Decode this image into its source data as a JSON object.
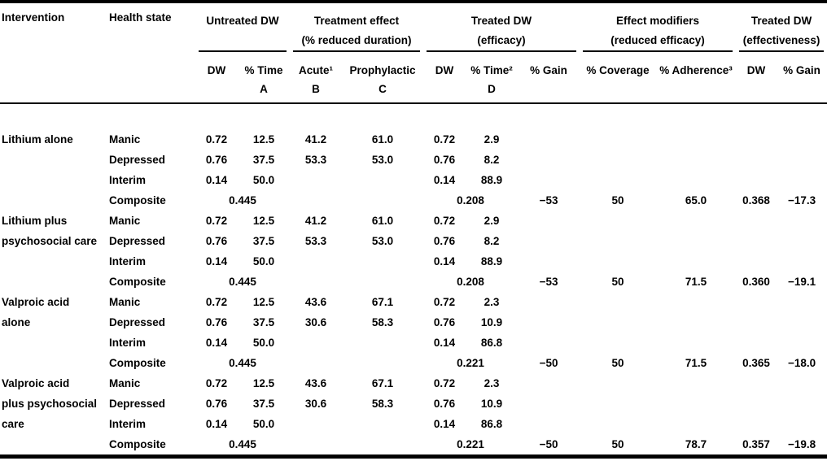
{
  "colors": {
    "text": "#000000",
    "background": "#ffffff",
    "rule": "#000000"
  },
  "table": {
    "header": {
      "intervention": "Intervention",
      "health_state": "Health state",
      "groups": [
        {
          "line1": "Untreated DW",
          "line2": "",
          "subcols": [
            {
              "top": "DW",
              "letter": ""
            },
            {
              "top": "% Time",
              "letter": "A"
            }
          ]
        },
        {
          "line1": "Treatment effect",
          "line2": "(% reduced duration)",
          "subcols": [
            {
              "top": "Acute¹",
              "letter": "B"
            },
            {
              "top": "Prophylactic",
              "letter": "C"
            }
          ]
        },
        {
          "line1": "Treated DW",
          "line2": "(efficacy)",
          "subcols": [
            {
              "top": "DW",
              "letter": ""
            },
            {
              "top": "% Time²",
              "letter": "D"
            },
            {
              "top": "% Gain",
              "letter": ""
            }
          ]
        },
        {
          "line1": "Effect modifiers",
          "line2": "(reduced efficacy)",
          "subcols": [
            {
              "top": "% Coverage",
              "letter": ""
            },
            {
              "top": "% Adherence³",
              "letter": ""
            }
          ]
        },
        {
          "line1": "Treated DW",
          "line2": "(effectiveness)",
          "subcols": [
            {
              "top": "DW",
              "letter": ""
            },
            {
              "top": "% Gain",
              "letter": ""
            }
          ]
        }
      ]
    },
    "column_keys": [
      "dw_untreated",
      "pct_time_a",
      "acute_b",
      "prophylactic_c",
      "dw_efficacy",
      "pct_time_d",
      "pct_gain_efficacy",
      "pct_coverage",
      "pct_adherence",
      "dw_effectiveness",
      "pct_gain_effectiveness"
    ],
    "sections": [
      {
        "intervention_lines": [
          "Lithium alone",
          "",
          "",
          ""
        ],
        "rows": [
          {
            "health_state": "Manic",
            "cells": [
              "0.72",
              "12.5",
              "41.2",
              "61.0",
              "0.72",
              "2.9",
              "",
              "",
              "",
              "",
              ""
            ]
          },
          {
            "health_state": "Depressed",
            "cells": [
              "0.76",
              "37.5",
              "53.3",
              "53.0",
              "0.76",
              "8.2",
              "",
              "",
              "",
              "",
              ""
            ]
          },
          {
            "health_state": "Interim",
            "cells": [
              "0.14",
              "50.0",
              "",
              "",
              "0.14",
              "88.9",
              "",
              "",
              "",
              "",
              ""
            ]
          },
          {
            "health_state": "Composite",
            "composite": true,
            "untreated_composite": "0.445",
            "efficacy_composite": "0.208",
            "gain_efficacy": "−53",
            "coverage": "50",
            "adherence": "65.0",
            "dw_effectiveness": "0.368",
            "gain_effectiveness": "−17.3"
          }
        ]
      },
      {
        "intervention_lines": [
          "Lithium plus",
          "psychosocial care",
          "",
          ""
        ],
        "rows": [
          {
            "health_state": "Manic",
            "cells": [
              "0.72",
              "12.5",
              "41.2",
              "61.0",
              "0.72",
              "2.9",
              "",
              "",
              "",
              "",
              ""
            ]
          },
          {
            "health_state": "Depressed",
            "cells": [
              "0.76",
              "37.5",
              "53.3",
              "53.0",
              "0.76",
              "8.2",
              "",
              "",
              "",
              "",
              ""
            ]
          },
          {
            "health_state": "Interim",
            "cells": [
              "0.14",
              "50.0",
              "",
              "",
              "0.14",
              "88.9",
              "",
              "",
              "",
              "",
              ""
            ]
          },
          {
            "health_state": "Composite",
            "composite": true,
            "untreated_composite": "0.445",
            "efficacy_composite": "0.208",
            "gain_efficacy": "−53",
            "coverage": "50",
            "adherence": "71.5",
            "dw_effectiveness": "0.360",
            "gain_effectiveness": "−19.1"
          }
        ]
      },
      {
        "intervention_lines": [
          "Valproic acid",
          "alone",
          "",
          ""
        ],
        "rows": [
          {
            "health_state": "Manic",
            "cells": [
              "0.72",
              "12.5",
              "43.6",
              "67.1",
              "0.72",
              "2.3",
              "",
              "",
              "",
              "",
              ""
            ]
          },
          {
            "health_state": "Depressed",
            "cells": [
              "0.76",
              "37.5",
              "30.6",
              "58.3",
              "0.76",
              "10.9",
              "",
              "",
              "",
              "",
              ""
            ]
          },
          {
            "health_state": "Interim",
            "cells": [
              "0.14",
              "50.0",
              "",
              "",
              "0.14",
              "86.8",
              "",
              "",
              "",
              "",
              ""
            ]
          },
          {
            "health_state": "Composite",
            "composite": true,
            "untreated_composite": "0.445",
            "efficacy_composite": "0.221",
            "gain_efficacy": "−50",
            "coverage": "50",
            "adherence": "71.5",
            "dw_effectiveness": "0.365",
            "gain_effectiveness": "−18.0"
          }
        ]
      },
      {
        "intervention_lines": [
          "Valproic acid",
          "plus psychosocial",
          "care",
          ""
        ],
        "rows": [
          {
            "health_state": "Manic",
            "cells": [
              "0.72",
              "12.5",
              "43.6",
              "67.1",
              "0.72",
              "2.3",
              "",
              "",
              "",
              "",
              ""
            ]
          },
          {
            "health_state": "Depressed",
            "cells": [
              "0.76",
              "37.5",
              "30.6",
              "58.3",
              "0.76",
              "10.9",
              "",
              "",
              "",
              "",
              ""
            ]
          },
          {
            "health_state": "Interim",
            "cells": [
              "0.14",
              "50.0",
              "",
              "",
              "0.14",
              "86.8",
              "",
              "",
              "",
              "",
              ""
            ]
          },
          {
            "health_state": "Composite",
            "composite": true,
            "untreated_composite": "0.445",
            "efficacy_composite": "0.221",
            "gain_efficacy": "−50",
            "coverage": "50",
            "adherence": "78.7",
            "dw_effectiveness": "0.357",
            "gain_effectiveness": "−19.8"
          }
        ]
      }
    ]
  }
}
